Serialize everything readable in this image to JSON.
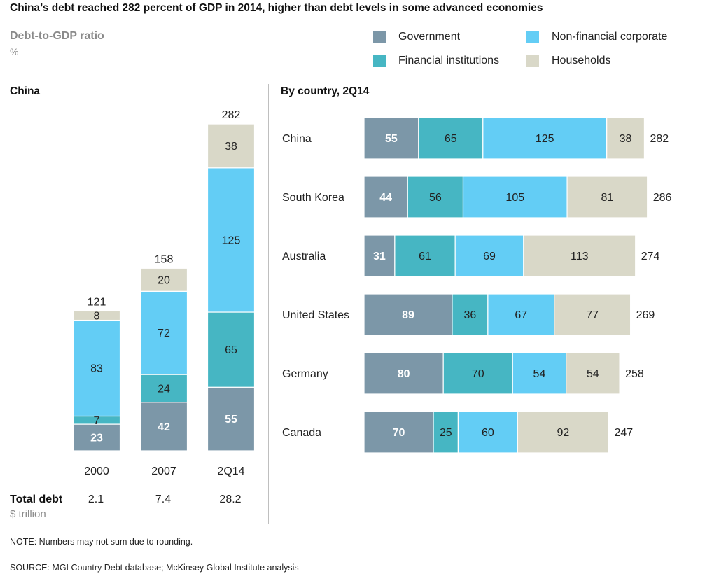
{
  "title": "China’s debt reached 282 percent of GDP in 2014, higher than debt levels in some advanced economies",
  "subtitle": "Debt-to-GDP ratio",
  "unit": "%",
  "legend": [
    {
      "label": "Government",
      "color": "#7c97a8"
    },
    {
      "label": "Non-financial corporate",
      "color": "#63cdf5"
    },
    {
      "label": "Financial institutions",
      "color": "#46b6c3"
    },
    {
      "label": "Households",
      "color": "#d9d8c8"
    }
  ],
  "left_section_title": "China",
  "right_section_title": "By country, 2Q14",
  "total_debt": {
    "label": "Total debt",
    "unit": "$ trillion",
    "values": [
      "2.1",
      "7.4",
      "28.2"
    ]
  },
  "note": "NOTE: Numbers may not sum due to rounding.",
  "source": "SOURCE:  MGI Country Debt database; McKinsey Global Institute analysis",
  "chart_data": [
    {
      "type": "bar",
      "orientation": "vertical",
      "stacked": true,
      "title": "China",
      "categories": [
        "2000",
        "2007",
        "2Q14"
      ],
      "series": [
        {
          "name": "Government",
          "color": "#7c97a8",
          "values": [
            23,
            42,
            55
          ]
        },
        {
          "name": "Financial institutions",
          "color": "#46b6c3",
          "values": [
            7,
            24,
            65
          ]
        },
        {
          "name": "Non-financial corporate",
          "color": "#63cdf5",
          "values": [
            83,
            72,
            125
          ]
        },
        {
          "name": "Households",
          "color": "#d9d8c8",
          "values": [
            8,
            20,
            38
          ]
        }
      ],
      "totals": [
        121,
        158,
        282
      ]
    },
    {
      "type": "bar",
      "orientation": "horizontal",
      "stacked": true,
      "title": "By country, 2Q14",
      "categories": [
        "China",
        "South Korea",
        "Australia",
        "United States",
        "Germany",
        "Canada"
      ],
      "series": [
        {
          "name": "Government",
          "color": "#7c97a8",
          "values": [
            55,
            44,
            31,
            89,
            80,
            70
          ]
        },
        {
          "name": "Financial institutions",
          "color": "#46b6c3",
          "values": [
            65,
            56,
            61,
            36,
            70,
            25
          ]
        },
        {
          "name": "Non-financial corporate",
          "color": "#63cdf5",
          "values": [
            125,
            105,
            69,
            67,
            54,
            60
          ]
        },
        {
          "name": "Households",
          "color": "#d9d8c8",
          "values": [
            38,
            81,
            113,
            77,
            54,
            92
          ]
        }
      ],
      "totals": [
        282,
        286,
        274,
        269,
        258,
        247
      ]
    }
  ]
}
